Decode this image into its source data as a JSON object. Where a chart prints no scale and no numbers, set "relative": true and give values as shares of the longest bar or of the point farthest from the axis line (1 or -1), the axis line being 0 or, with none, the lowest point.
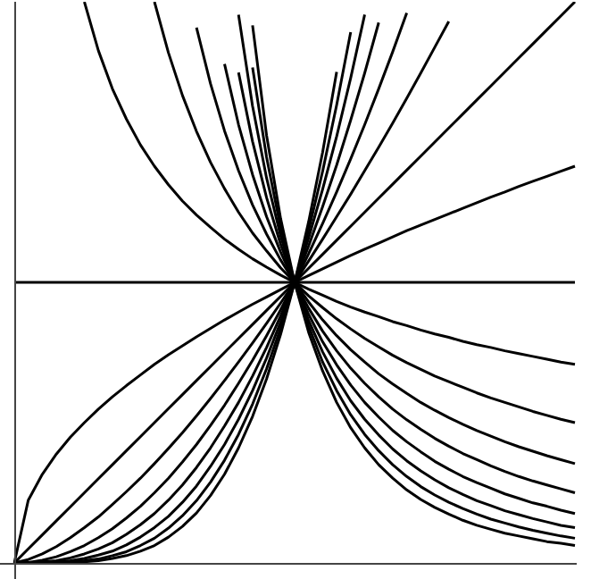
{
  "chart_data": {
    "type": "line",
    "relative": true,
    "marker": "none",
    "categories": [
      null,
      null,
      null,
      null,
      null,
      null,
      null,
      null,
      null,
      null,
      null,
      null,
      null,
      null,
      null,
      null,
      null,
      null,
      null,
      null,
      null,
      null,
      null,
      null,
      null,
      null,
      null,
      null,
      null,
      null,
      null,
      null,
      null,
      null,
      null,
      null,
      null,
      null,
      null,
      null,
      null
    ],
    "series": [
      {
        "color": "#000000",
        "values": [
          0,
          0.112,
          0.158,
          0.194,
          0.224,
          0.25,
          0.274,
          0.296,
          0.316,
          0.335,
          0.354,
          0.371,
          0.387,
          0.403,
          0.418,
          0.433,
          0.447,
          0.461,
          0.474,
          0.487,
          0.5,
          0.512,
          0.524,
          0.536,
          0.548,
          0.559,
          0.57,
          0.581,
          0.592,
          0.602,
          0.612,
          0.622,
          0.632,
          0.642,
          0.652,
          0.661,
          0.671,
          0.68,
          0.689,
          0.698,
          0.707
        ]
      },
      {
        "color": "#000000",
        "values": [
          0,
          0.025,
          0.05,
          0.075,
          0.1,
          0.125,
          0.15,
          0.175,
          0.2,
          0.225,
          0.25,
          0.275,
          0.3,
          0.325,
          0.35,
          0.375,
          0.4,
          0.425,
          0.45,
          0.475,
          0.5,
          0.525,
          0.55,
          0.575,
          0.6,
          0.625,
          0.65,
          0.675,
          0.7,
          0.725,
          0.75,
          0.775,
          0.8,
          0.825,
          0.85,
          0.875,
          0.9,
          0.925,
          0.95,
          0.975,
          1
        ]
      },
      {
        "color": "#000000",
        "values": [
          0,
          0.006,
          0.016,
          0.029,
          0.045,
          0.063,
          0.082,
          0.104,
          0.127,
          0.151,
          0.177,
          0.204,
          0.232,
          0.262,
          0.293,
          0.325,
          0.358,
          0.392,
          0.427,
          0.463,
          0.5,
          0.538,
          0.577,
          0.617,
          0.657,
          0.699,
          0.741,
          0.784,
          0.828,
          0.873,
          0.919,
          0.965,
          null,
          null,
          null,
          null,
          null,
          null,
          null,
          null,
          null
        ]
      },
      {
        "color": "#000000",
        "values": [
          0,
          0.001,
          0.005,
          0.011,
          0.02,
          0.031,
          0.045,
          0.061,
          0.08,
          0.101,
          0.125,
          0.151,
          0.18,
          0.211,
          0.245,
          0.281,
          0.32,
          0.361,
          0.405,
          0.451,
          0.5,
          0.551,
          0.605,
          0.661,
          0.72,
          0.781,
          0.845,
          0.911,
          0.98,
          null,
          null,
          null,
          null,
          null,
          null,
          null,
          null,
          null,
          null,
          null,
          null
        ]
      },
      {
        "color": "#000000",
        "values": [
          0,
          0,
          0.002,
          0.004,
          0.009,
          0.016,
          0.025,
          0.036,
          0.051,
          0.068,
          0.088,
          0.112,
          0.139,
          0.17,
          0.205,
          0.244,
          0.286,
          0.333,
          0.384,
          0.44,
          0.5,
          0.565,
          0.635,
          0.709,
          0.789,
          0.873,
          0.963,
          null,
          null,
          null,
          null,
          null,
          null,
          null,
          null,
          null,
          null,
          null,
          null,
          null,
          null
        ]
      },
      {
        "color": "#000000",
        "values": [
          0,
          0,
          0.001,
          0.002,
          0.004,
          0.008,
          0.014,
          0.021,
          0.032,
          0.046,
          0.063,
          0.083,
          0.108,
          0.137,
          0.172,
          0.211,
          0.256,
          0.307,
          0.365,
          0.429,
          0.5,
          0.579,
          0.666,
          0.76,
          0.864,
          0.977,
          null,
          null,
          null,
          null,
          null,
          null,
          null,
          null,
          null,
          null,
          null,
          null,
          null,
          null,
          null
        ]
      },
      {
        "color": "#000000",
        "values": [
          0,
          0,
          0,
          0.001,
          0.002,
          0.004,
          0.007,
          0.013,
          0.02,
          0.031,
          0.044,
          0.062,
          0.084,
          0.111,
          0.144,
          0.183,
          0.229,
          0.283,
          0.346,
          0.418,
          0.5,
          0.593,
          0.698,
          0.816,
          0.946,
          null,
          null,
          null,
          null,
          null,
          null,
          null,
          null,
          null,
          null,
          null,
          null,
          null,
          null,
          null,
          null
        ]
      },
      {
        "color": "#000000",
        "values": [
          0,
          0,
          0,
          0,
          0.001,
          0.002,
          0.004,
          0.008,
          0.013,
          0.021,
          0.031,
          0.046,
          0.065,
          0.089,
          0.12,
          0.158,
          0.205,
          0.261,
          0.328,
          0.407,
          0.5,
          0.608,
          0.732,
          0.875,
          null,
          null,
          null,
          null,
          null,
          null,
          null,
          null,
          null,
          null,
          null,
          null,
          null,
          null,
          null,
          null,
          null
        ]
      },
      {
        "color": "#000000",
        "values": [
          0.5,
          0.5,
          0.5,
          0.5,
          0.5,
          0.5,
          0.5,
          0.5,
          0.5,
          0.5,
          0.5,
          0.5,
          0.5,
          0.5,
          0.5,
          0.5,
          0.5,
          0.5,
          0.5,
          0.5,
          0.5,
          0.5,
          0.5,
          0.5,
          0.5,
          0.5,
          0.5,
          0.5,
          0.5,
          0.5,
          0.5,
          0.5,
          0.5,
          0.5,
          0.5,
          0.5,
          0.5,
          0.5,
          0.5,
          0.5,
          0.5
        ]
      },
      {
        "color": "#000000",
        "values": [
          null,
          null,
          null,
          null,
          null,
          1,
          0.913,
          0.845,
          0.791,
          0.745,
          0.707,
          0.674,
          0.645,
          0.62,
          0.598,
          0.577,
          0.559,
          0.542,
          0.527,
          0.513,
          0.5,
          0.488,
          0.477,
          0.466,
          0.456,
          0.447,
          0.439,
          0.43,
          0.423,
          0.415,
          0.408,
          0.402,
          0.395,
          0.389,
          0.384,
          0.378,
          0.373,
          0.368,
          0.363,
          0.358,
          0.354
        ]
      },
      {
        "color": "#000000",
        "values": [
          null,
          null,
          null,
          null,
          null,
          null,
          null,
          null,
          null,
          null,
          1,
          0.909,
          0.833,
          0.769,
          0.714,
          0.667,
          0.625,
          0.588,
          0.556,
          0.526,
          0.5,
          0.476,
          0.455,
          0.435,
          0.417,
          0.4,
          0.385,
          0.37,
          0.357,
          0.345,
          0.333,
          0.323,
          0.313,
          0.303,
          0.294,
          0.286,
          0.278,
          0.27,
          0.263,
          0.256,
          0.25
        ]
      },
      {
        "color": "#000000",
        "values": [
          null,
          null,
          null,
          null,
          null,
          null,
          null,
          null,
          null,
          null,
          null,
          null,
          null,
          0.954,
          0.854,
          0.77,
          0.699,
          0.638,
          0.586,
          0.54,
          0.5,
          0.465,
          0.433,
          0.405,
          0.38,
          0.358,
          0.337,
          0.319,
          0.302,
          0.286,
          0.272,
          0.259,
          0.247,
          0.236,
          0.226,
          0.216,
          0.207,
          0.199,
          0.191,
          0.184,
          0.177
        ]
      },
      {
        "color": "#000000",
        "values": [
          null,
          null,
          null,
          null,
          null,
          null,
          null,
          null,
          null,
          null,
          null,
          null,
          null,
          null,
          null,
          0.889,
          0.781,
          0.692,
          0.617,
          0.554,
          0.5,
          0.454,
          0.413,
          0.378,
          0.347,
          0.32,
          0.296,
          0.274,
          0.255,
          0.238,
          0.222,
          0.208,
          0.195,
          0.184,
          0.173,
          0.163,
          0.154,
          0.146,
          0.139,
          0.132,
          0.125
        ]
      },
      {
        "color": "#000000",
        "values": [
          null,
          null,
          null,
          null,
          null,
          null,
          null,
          null,
          null,
          null,
          null,
          null,
          null,
          null,
          null,
          null,
          0.874,
          0.751,
          0.651,
          0.568,
          0.5,
          0.443,
          0.394,
          0.353,
          0.317,
          0.286,
          0.26,
          0.236,
          0.216,
          0.198,
          0.181,
          0.167,
          0.154,
          0.143,
          0.133,
          0.123,
          0.115,
          0.107,
          0.101,
          0.094,
          0.088
        ]
      },
      {
        "color": "#000000",
        "values": [
          null,
          null,
          null,
          null,
          null,
          null,
          null,
          null,
          null,
          null,
          null,
          null,
          null,
          null,
          null,
          null,
          0.977,
          0.814,
          0.686,
          0.583,
          0.5,
          0.432,
          0.376,
          0.329,
          0.289,
          0.256,
          0.228,
          0.203,
          0.182,
          0.164,
          0.148,
          0.134,
          0.122,
          0.111,
          0.102,
          0.093,
          0.086,
          0.079,
          0.073,
          0.067,
          0.063
        ]
      },
      {
        "color": "#000000",
        "values": [
          null,
          null,
          null,
          null,
          null,
          null,
          null,
          null,
          null,
          null,
          null,
          null,
          null,
          null,
          null,
          null,
          null,
          0.883,
          0.723,
          0.598,
          0.5,
          0.422,
          0.358,
          0.307,
          0.264,
          0.229,
          0.2,
          0.175,
          0.154,
          0.136,
          0.121,
          0.108,
          0.097,
          0.087,
          0.078,
          0.071,
          0.064,
          0.058,
          0.053,
          0.048,
          0.044
        ]
      },
      {
        "color": "#000000",
        "values": [
          null,
          null,
          null,
          null,
          null,
          null,
          null,
          null,
          null,
          null,
          null,
          null,
          null,
          null,
          null,
          null,
          null,
          0.958,
          0.762,
          0.614,
          0.5,
          0.411,
          0.342,
          0.286,
          0.241,
          0.205,
          0.175,
          0.151,
          0.13,
          0.113,
          0.099,
          0.087,
          0.076,
          0.067,
          0.06,
          0.053,
          0.048,
          0.043,
          0.038,
          0.035,
          0.031
        ]
      }
    ]
  }
}
